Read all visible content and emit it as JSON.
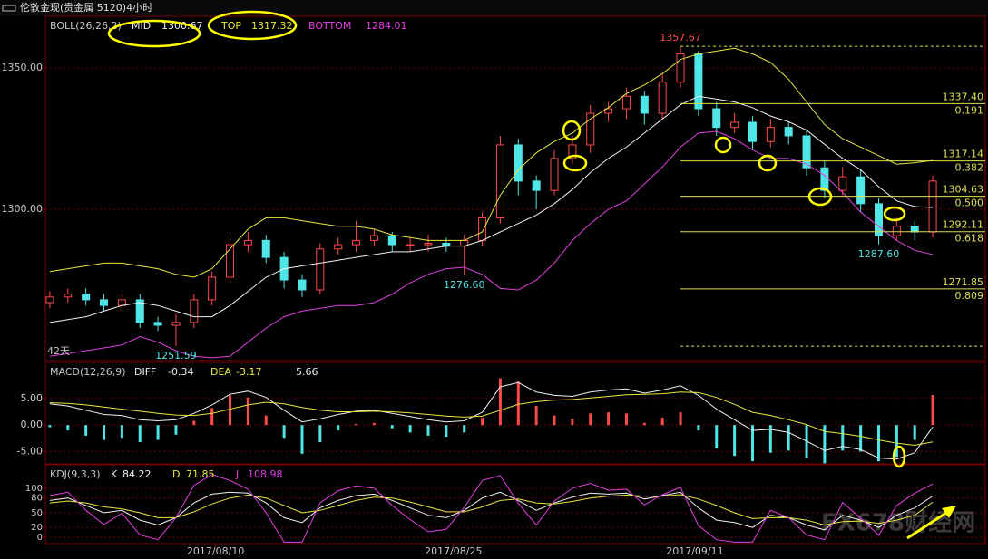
{
  "chart_data": [
    {
      "type": "candlestick",
      "title": "伦敦金现(贵金属 5120)4小时",
      "indicator": "BOLL(26,26,2)",
      "period_label": "42天",
      "up_color": "#ff4a4a",
      "down_color": "#4ee6e6",
      "xlim": [
        -0.5,
        49.5
      ],
      "xticks": [
        {
          "value": 9.2,
          "label": "2017/08/10"
        },
        {
          "value": 22.4,
          "label": "2017/08/25"
        },
        {
          "value": 35.8,
          "label": "2017/09/11"
        }
      ],
      "ylim": [
        1246.5,
        1368.3
      ],
      "yticks": [
        {
          "value": 1300,
          "label": "1300.00"
        },
        {
          "value": 1350,
          "label": "1350.00"
        }
      ],
      "grid": true,
      "open": [
        1267,
        1269,
        1270,
        1268,
        1266,
        1268,
        1260,
        1259,
        1260,
        1268,
        1276,
        1287.5,
        1289,
        1283,
        1275,
        1271.5,
        1286,
        1287.5,
        1289,
        1290.7,
        1287.5,
        1287.5,
        1288,
        1287,
        1289,
        1297,
        1322.8,
        1310,
        1306.7,
        1318,
        1322.8,
        1334,
        1335.6,
        1340,
        1334,
        1345,
        1355,
        1335.6,
        1329,
        1330.8,
        1324,
        1329,
        1326,
        1314.7,
        1306.7,
        1311.5,
        1302,
        1290.7,
        1294,
        1292
      ],
      "high": [
        1271,
        1272,
        1272,
        1270,
        1270,
        1270,
        1262,
        1263,
        1270,
        1278,
        1290,
        1292,
        1291,
        1285,
        1277,
        1288,
        1290,
        1296,
        1293,
        1292,
        1290,
        1291,
        1290,
        1291,
        1299,
        1326,
        1325,
        1312,
        1321,
        1326,
        1337,
        1338,
        1343,
        1342,
        1348,
        1357.67,
        1356,
        1338,
        1334,
        1333,
        1332,
        1331,
        1328,
        1317,
        1315,
        1314,
        1304,
        1297,
        1296,
        1312
      ],
      "low": [
        1265,
        1267,
        1266,
        1264,
        1264,
        1258,
        1257,
        1251.59,
        1258,
        1266,
        1274,
        1285,
        1281,
        1272,
        1269,
        1270,
        1284,
        1285,
        1287,
        1285,
        1285,
        1285,
        1285,
        1276.6,
        1287,
        1295,
        1305,
        1300,
        1305,
        1316,
        1320,
        1331,
        1332,
        1330,
        1332,
        1343,
        1333,
        1326,
        1327,
        1321,
        1322,
        1323,
        1312,
        1304,
        1305,
        1299,
        1287.6,
        1289,
        1289,
        1290
      ],
      "close": [
        1269,
        1270,
        1268,
        1266,
        1268,
        1260,
        1259,
        1260,
        1268,
        1276,
        1287.5,
        1289,
        1283,
        1275,
        1271.5,
        1286,
        1287.5,
        1289,
        1290.7,
        1287.5,
        1287.5,
        1288,
        1287,
        1289,
        1297,
        1322.8,
        1310,
        1306.7,
        1318,
        1322.8,
        1334,
        1335.6,
        1340,
        1334,
        1345,
        1355,
        1335.6,
        1329,
        1330.8,
        1324,
        1329,
        1326,
        1314.7,
        1306.7,
        1311.5,
        1302,
        1290.7,
        1294,
        1292,
        1310
      ],
      "series": [
        {
          "name": "MID",
          "color": "#f0f0f0",
          "values": [
            1260,
            1261,
            1262,
            1264,
            1266,
            1267,
            1266,
            1264,
            1262,
            1262,
            1266,
            1271,
            1276,
            1279,
            1280,
            1281,
            1282,
            1283,
            1284,
            1285,
            1285,
            1286,
            1287,
            1287,
            1289,
            1292,
            1295,
            1298,
            1302,
            1307,
            1313,
            1318,
            1322,
            1327,
            1332,
            1337,
            1340,
            1339,
            1338,
            1336,
            1333,
            1331,
            1328,
            1323,
            1318,
            1314,
            1308,
            1303,
            1301,
            1300.67
          ]
        },
        {
          "name": "TOP",
          "color": "#e8e840",
          "values": [
            1278,
            1279,
            1280,
            1281,
            1281,
            1280,
            1279,
            1277,
            1276,
            1279,
            1286,
            1293,
            1297,
            1297,
            1296,
            1295,
            1294,
            1294,
            1293,
            1291,
            1290,
            1289,
            1289,
            1289,
            1292,
            1305,
            1314,
            1320,
            1324,
            1327,
            1332,
            1336,
            1341,
            1344,
            1348,
            1353,
            1355,
            1356,
            1357,
            1355,
            1352,
            1346,
            1338,
            1330,
            1325,
            1322,
            1319,
            1316,
            1316.5,
            1317.32
          ]
        },
        {
          "name": "BOTTOM",
          "color": "#e040e0",
          "values": [
            1248,
            1249,
            1250,
            1251,
            1252,
            1255,
            1253,
            1250,
            1248,
            1247.5,
            1248,
            1253,
            1258,
            1262,
            1264,
            1265,
            1266,
            1266,
            1267,
            1270,
            1274,
            1277,
            1279,
            1279.5,
            1277,
            1272,
            1271.5,
            1275,
            1281,
            1289,
            1295,
            1300,
            1303,
            1309,
            1315,
            1322,
            1327,
            1327.6,
            1325,
            1321,
            1318,
            1318,
            1316,
            1312,
            1306,
            1299,
            1294,
            1289,
            1285.5,
            1284.01
          ]
        }
      ],
      "fib_range": [
        1357.67,
        1251.59
      ],
      "fib_levels": [
        {
          "value": 1337.4,
          "label": "1337.40",
          "ratio": "0.191"
        },
        {
          "value": 1317.14,
          "label": "1317.14",
          "ratio": "0.382"
        },
        {
          "value": 1304.63,
          "label": "1304.63",
          "ratio": "0.500"
        },
        {
          "value": 1292.11,
          "label": "1292.11",
          "ratio": "0.618"
        },
        {
          "value": 1271.85,
          "label": "1271.85",
          "ratio": "0.809"
        }
      ],
      "fib_color": "#e0e050",
      "annotations": [
        {
          "x": 35,
          "value": 1357.67,
          "label": "1357.67",
          "color": "#ff5050"
        },
        {
          "x": 23,
          "value": 1276.6,
          "label": "1276.60",
          "color": "#4ee6e6"
        },
        {
          "x": 7,
          "value": 1251.59,
          "label": "1251.59",
          "color": "#4ee6e6"
        },
        {
          "x": 46,
          "value": 1287.6,
          "label": "1287.60",
          "color": "#4ee6e6"
        }
      ]
    },
    {
      "type": "macd",
      "title": "MACD(12,26,9)",
      "ylim": [
        -7.3,
        11.8
      ],
      "yticks": [
        {
          "value": -5,
          "label": "-5.00"
        },
        {
          "value": 0,
          "label": "0.00"
        },
        {
          "value": 5,
          "label": "5.00"
        }
      ],
      "grid": true,
      "series": [
        {
          "name": "DIFF",
          "color": "#f0f0f0",
          "values": [
            4.0,
            3.6,
            2.8,
            2.0,
            1.8,
            1.0,
            0.8,
            1.0,
            2.2,
            3.8,
            5.8,
            6.4,
            5.2,
            2.8,
            0.6,
            1.2,
            2.0,
            2.6,
            2.8,
            2.2,
            1.6,
            1.0,
            0.6,
            0.8,
            2.4,
            7.2,
            8.0,
            6.2,
            5.6,
            5.4,
            6.2,
            6.6,
            6.8,
            6.0,
            6.6,
            7.4,
            5.6,
            3.0,
            1.0,
            -1.0,
            -0.8,
            -1.4,
            -3.0,
            -4.8,
            -4.0,
            -4.6,
            -6.2,
            -6.4,
            -5.2,
            -0.34
          ]
        },
        {
          "name": "DEA",
          "color": "#e8e840",
          "values": [
            4.2,
            4.1,
            3.8,
            3.4,
            3.0,
            2.6,
            2.2,
            1.9,
            1.8,
            2.2,
            3.0,
            3.8,
            4.3,
            4.0,
            3.3,
            2.8,
            2.5,
            2.5,
            2.6,
            2.5,
            2.3,
            2.0,
            1.7,
            1.5,
            1.7,
            2.8,
            3.9,
            4.4,
            4.7,
            4.8,
            5.1,
            5.4,
            5.7,
            5.8,
            5.9,
            6.2,
            6.1,
            5.2,
            3.9,
            2.4,
            1.8,
            1.0,
            0.1,
            -1.2,
            -1.6,
            -2.1,
            -2.8,
            -3.4,
            -3.8,
            -3.17
          ]
        }
      ],
      "histogram": {
        "up_color": "#ff4a4a",
        "down_color": "#4ee6e6",
        "values": [
          -0.4,
          -1.0,
          -2.0,
          -2.8,
          -2.4,
          -3.2,
          -2.8,
          -1.8,
          0.8,
          3.2,
          5.6,
          5.2,
          1.8,
          -2.4,
          -5.4,
          -3.2,
          -1.0,
          0.2,
          0.4,
          -0.6,
          -1.4,
          -2.0,
          -2.2,
          -1.4,
          1.4,
          8.8,
          8.2,
          3.6,
          1.8,
          1.2,
          2.2,
          2.4,
          2.2,
          0.4,
          1.4,
          2.4,
          -1.0,
          -4.4,
          -5.8,
          -6.8,
          -5.2,
          -4.8,
          -6.2,
          -7.2,
          -4.8,
          -5.0,
          -6.8,
          -6.0,
          -2.8,
          5.66
        ]
      }
    },
    {
      "type": "kdj",
      "title": "KDJ(9,3,3)",
      "ylim": [
        -13,
        148
      ],
      "yticks": [
        0,
        20,
        50,
        80,
        100
      ],
      "grid": true,
      "watermark": "FX678财经网",
      "series": [
        {
          "name": "K",
          "color": "#f0f0f0",
          "values": [
            75,
            80,
            65,
            50,
            55,
            35,
            25,
            40,
            70,
            88,
            92,
            90,
            70,
            40,
            30,
            60,
            75,
            85,
            88,
            75,
            60,
            45,
            40,
            55,
            80,
            92,
            75,
            55,
            70,
            82,
            90,
            88,
            90,
            78,
            85,
            92,
            60,
            35,
            30,
            20,
            45,
            40,
            25,
            15,
            45,
            35,
            20,
            45,
            60,
            84.22
          ]
        },
        {
          "name": "D",
          "color": "#e8e840",
          "values": [
            70,
            74,
            70,
            62,
            58,
            50,
            40,
            40,
            52,
            68,
            80,
            86,
            80,
            65,
            50,
            55,
            65,
            75,
            82,
            80,
            72,
            62,
            52,
            52,
            62,
            75,
            78,
            70,
            68,
            73,
            80,
            84,
            86,
            84,
            84,
            87,
            78,
            65,
            50,
            38,
            40,
            40,
            35,
            25,
            32,
            33,
            28,
            35,
            45,
            71.85
          ]
        },
        {
          "name": "J",
          "color": "#e040e0",
          "values": [
            85,
            92,
            55,
            26,
            49,
            5,
            -5,
            40,
            106,
            128,
            116,
            98,
            50,
            -10,
            -10,
            70,
            95,
            105,
            100,
            65,
            36,
            11,
            16,
            61,
            116,
            126,
            69,
            25,
            74,
            100,
            110,
            96,
            98,
            66,
            87,
            102,
            24,
            -5,
            -10,
            -10,
            55,
            40,
            5,
            -5,
            71,
            39,
            4,
            65,
            90,
            108.98
          ]
        }
      ]
    }
  ]
}
